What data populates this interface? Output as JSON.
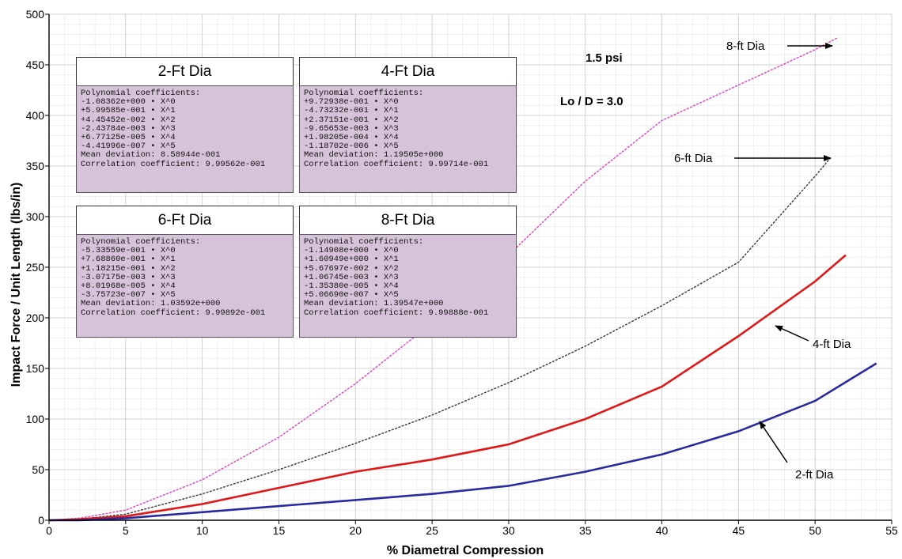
{
  "chart_data": {
    "type": "line",
    "xlabel": "% Diametral Compression",
    "ylabel": "Impact Force / Unit Length (lbs/in)",
    "xlim": [
      0,
      55
    ],
    "ylim": [
      0,
      500
    ],
    "x_ticks": [
      "0",
      "5",
      "10",
      "15",
      "20",
      "25",
      "30",
      "35",
      "40",
      "45",
      "50",
      "55"
    ],
    "y_ticks": [
      "0",
      "50",
      "100",
      "150",
      "200",
      "250",
      "300",
      "350",
      "400",
      "450",
      "500"
    ],
    "grid": true,
    "series": [
      {
        "name": "8-ft Dia",
        "color": "#e040c0",
        "points": [
          [
            0,
            0
          ],
          [
            2,
            2
          ],
          [
            5,
            10
          ],
          [
            10,
            40
          ],
          [
            15,
            82
          ],
          [
            20,
            135
          ],
          [
            25,
            195
          ],
          [
            30,
            262
          ],
          [
            35,
            335
          ],
          [
            40,
            395
          ],
          [
            45,
            430
          ],
          [
            50,
            465
          ],
          [
            51.5,
            477
          ]
        ]
      },
      {
        "name": "6-ft Dia",
        "color": "#3a3a3a",
        "points": [
          [
            0,
            0
          ],
          [
            2,
            1
          ],
          [
            5,
            6
          ],
          [
            10,
            26
          ],
          [
            15,
            50
          ],
          [
            20,
            76
          ],
          [
            25,
            104
          ],
          [
            30,
            136
          ],
          [
            35,
            172
          ],
          [
            40,
            212
          ],
          [
            45,
            255
          ],
          [
            50,
            340
          ],
          [
            51,
            358
          ]
        ]
      },
      {
        "name": "4-ft Dia",
        "color": "#e01818",
        "points": [
          [
            0,
            0
          ],
          [
            2,
            1
          ],
          [
            5,
            4
          ],
          [
            10,
            16
          ],
          [
            15,
            32
          ],
          [
            20,
            48
          ],
          [
            25,
            60
          ],
          [
            30,
            75
          ],
          [
            35,
            100
          ],
          [
            40,
            132
          ],
          [
            45,
            182
          ],
          [
            50,
            236
          ],
          [
            52,
            262
          ]
        ]
      },
      {
        "name": "2-ft Dia",
        "color": "#2a2aa0",
        "points": [
          [
            0,
            0
          ],
          [
            2,
            0
          ],
          [
            5,
            2
          ],
          [
            10,
            8
          ],
          [
            15,
            14
          ],
          [
            20,
            20
          ],
          [
            25,
            26
          ],
          [
            30,
            34
          ],
          [
            35,
            48
          ],
          [
            40,
            65
          ],
          [
            45,
            88
          ],
          [
            50,
            118
          ],
          [
            54,
            155
          ]
        ]
      }
    ],
    "annotations": {
      "pressure": "1.5 psi",
      "ratio": "Lo / D = 3.0",
      "labels": [
        "8-ft Dia",
        "6-ft Dia",
        "4-ft Dia",
        "2-ft Dia"
      ]
    },
    "coefficient_boxes": [
      {
        "title": "2-Ft Dia",
        "lines": [
          "Polynomial coefficients:",
          "-1.08362e+000 • X^0",
          "+5.99585e-001 • X^1",
          "+4.45452e-002 • X^2",
          "-2.43784e-003 • X^3",
          "+6.77125e-005 • X^4",
          "-4.41996e-007 • X^5",
          "Mean deviation: 8.58944e-001",
          "Correlation coefficient: 9.99562e-001"
        ]
      },
      {
        "title": "4-Ft Dia",
        "lines": [
          "Polynomial coefficients:",
          "+9.72938e-001 • X^0",
          "-4.73232e-001 • X^1",
          "+2.37151e-001 • X^2",
          "-9.65653e-003 • X^3",
          "+1.98205e-004 • X^4",
          "-1.18702e-006 • X^5",
          "Mean deviation: 1.19505e+000",
          "Correlation coefficient: 9.99714e-001"
        ]
      },
      {
        "title": "6-Ft Dia",
        "lines": [
          "Polynomial coefficients:",
          "-5.33559e-001 • X^0",
          "+7.68860e-001 • X^1",
          "+1.18215e-001 • X^2",
          "-3.07175e-003 • X^3",
          "+8.01968e-005 • X^4",
          "-3.75723e-007 • X^5",
          "Mean deviation: 1.03592e+000",
          "Correlation coefficient: 9.99892e-001"
        ]
      },
      {
        "title": "8-Ft Dia",
        "lines": [
          "Polynomial coefficients:",
          "-1.14908e+000 • X^0",
          "+1.60949e+000 • X^1",
          "+5.67697e-002 • X^2",
          "+1.06745e-003 • X^3",
          "-1.35380e-005 • X^4",
          "+5.06690e-007 • X^5",
          "Mean deviation: 1.39547e+000",
          "Correlation coefficient: 9.99888e-001"
        ]
      }
    ]
  }
}
